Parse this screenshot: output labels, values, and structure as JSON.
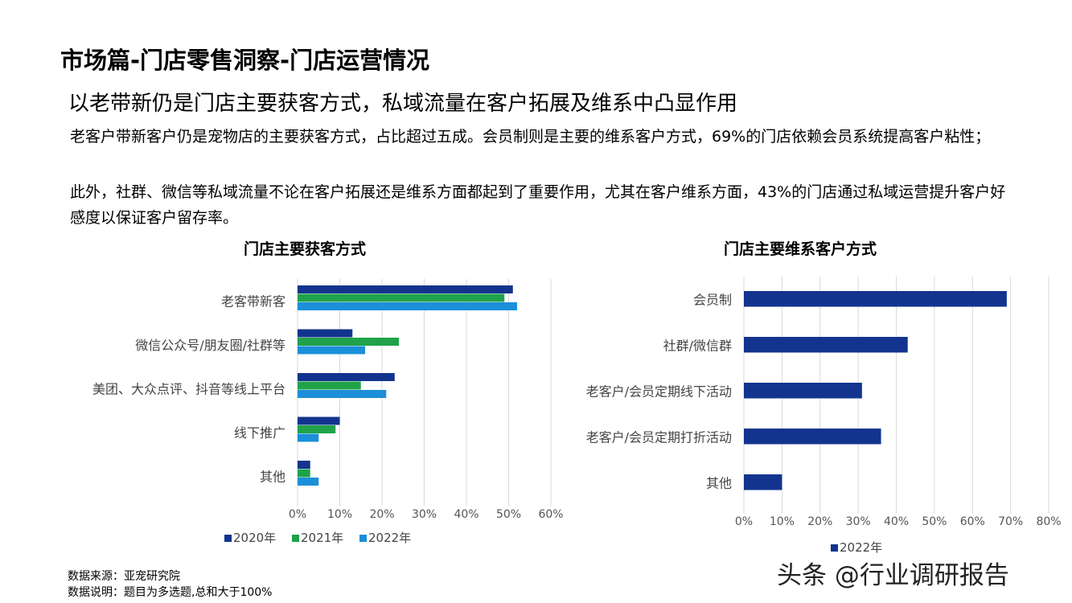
{
  "header": {
    "title": "市场篇-门店零售洞察-门店运营情况",
    "subtitle": "以老带新仍是门店主要获客方式，私域流量在客户拓展及维系中凸显作用"
  },
  "body": {
    "paragraph1": "老客户带新客户仍是宠物店的主要获客方式，占比超过五成。会员制则是主要的维系客户方式，69%的门店依赖会员系统提高客户粘性；",
    "paragraph2": "此外，社群、微信等私域流量不论在客户拓展还是维系方面都起到了重要作用，尤其在客户维系方面，43%的门店通过私域运营提升客户好感度以保证客户留存率。"
  },
  "footer": {
    "source": "数据来源：亚宠研究院",
    "note": "数据说明：题目为多选题,总和大于100%",
    "watermark": "头条 @行业调研报告"
  },
  "chart_data": [
    {
      "type": "bar",
      "orientation": "horizontal",
      "title": "门店主要获客方式",
      "categories": [
        "老客带新客",
        "微信公众号/朋友圈/社群等",
        "美团、大众点评、抖音等线上平台",
        "线下推广",
        "其他"
      ],
      "series": [
        {
          "name": "2020年",
          "color": "#13348e",
          "values": [
            51,
            13,
            23,
            10,
            3
          ]
        },
        {
          "name": "2021年",
          "color": "#1fa24a",
          "values": [
            49,
            24,
            15,
            9,
            3
          ]
        },
        {
          "name": "2022年",
          "color": "#1b8fd8",
          "values": [
            52,
            16,
            21,
            5,
            5
          ]
        }
      ],
      "xlim": [
        0,
        60
      ],
      "xticks": [
        "0%",
        "10%",
        "20%",
        "30%",
        "40%",
        "50%",
        "60%"
      ],
      "grid": true,
      "legend": "bottom"
    },
    {
      "type": "bar",
      "orientation": "horizontal",
      "title": "门店主要维系客户方式",
      "categories": [
        "会员制",
        "社群/微信群",
        "老客户/会员定期线下活动",
        "老客户/会员定期打折活动",
        "其他"
      ],
      "series": [
        {
          "name": "2022年",
          "color": "#13348e",
          "values": [
            69,
            43,
            31,
            36,
            10
          ]
        }
      ],
      "xlim": [
        0,
        80
      ],
      "xticks": [
        "0%",
        "10%",
        "20%",
        "30%",
        "40%",
        "50%",
        "60%",
        "70%",
        "80%"
      ],
      "grid": true,
      "legend": "bottom"
    }
  ]
}
